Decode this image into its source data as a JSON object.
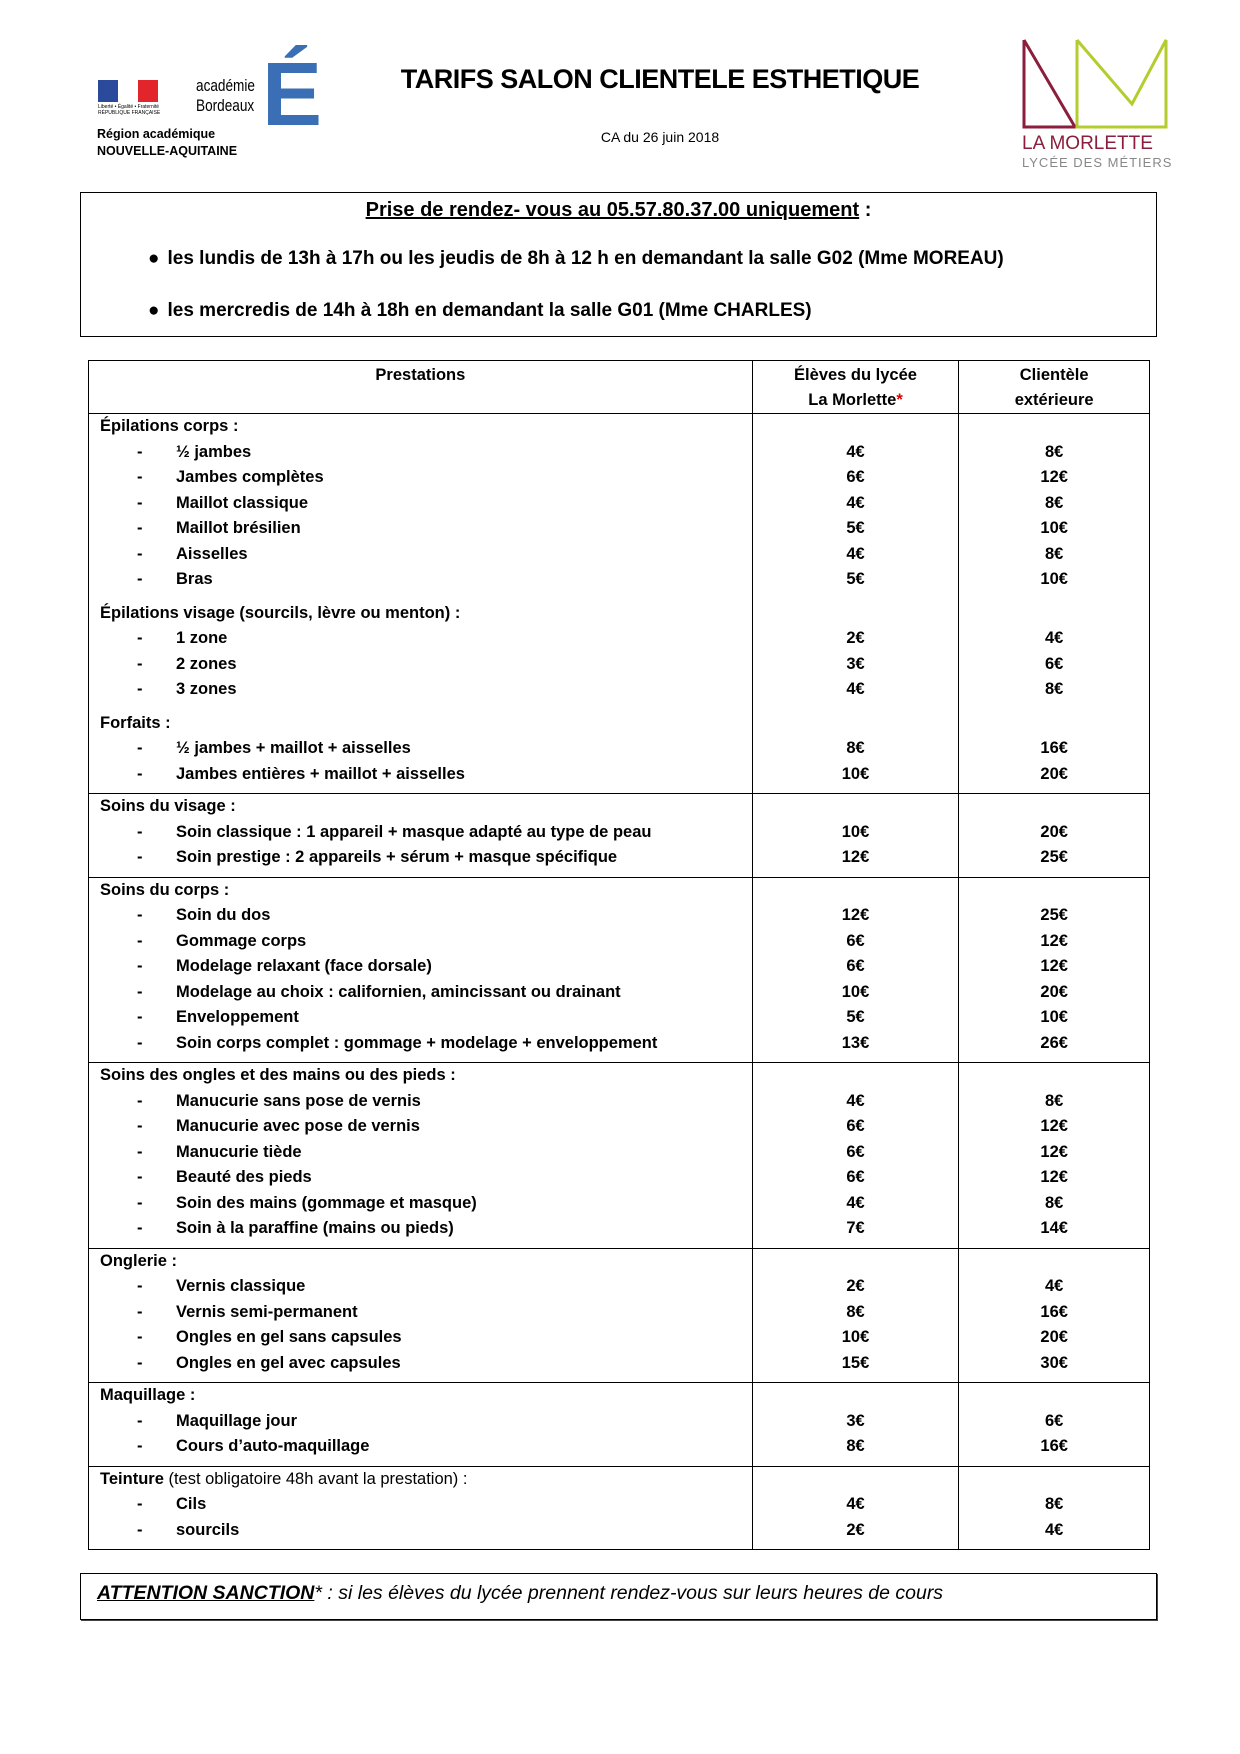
{
  "header": {
    "title": "TARIFS SALON CLIENTELE ESTHETIQUE",
    "date": "CA du 26 juin 2018",
    "left_logo": {
      "motto": "Liberté • Égalité • Fraternité",
      "republic": "RÉPUBLIQUE FRANÇAISE",
      "academie": "académie",
      "city": "Bordeaux",
      "letter": "É",
      "region_line1": "Région académique",
      "region_line2": "NOUVELLE-AQUITAINE"
    },
    "right_logo": {
      "name": "LA MORLETTE",
      "subtitle": "LYCÉE DES MÉTIERS",
      "colors": {
        "dark": "#8a1e3c",
        "light": "#b5cc2e"
      }
    }
  },
  "rdv": {
    "title": "Prise de rendez- vous au 05.57.80.37.00 uniquement",
    "title_suffix": " :",
    "bullets": [
      "les lundis de 13h à 17h ou les jeudis de 8h à 12 h en demandant la salle G02 (Mme MOREAU)",
      "les mercredis de 14h à 18h en demandant la salle G01 (Mme CHARLES)"
    ]
  },
  "table": {
    "headers": {
      "prestations": "Prestations",
      "eleves_1": "Élèves du lycée",
      "eleves_2": "La Morlette",
      "asterisk": "*",
      "ext_1": "Clientèle",
      "ext_2": "extérieure"
    },
    "sections": [
      {
        "groups": [
          {
            "heading": "Épilations corps :",
            "items": [
              [
                "½ jambes",
                "4€",
                "8€"
              ],
              [
                "Jambes complètes",
                "6€",
                "12€"
              ],
              [
                "Maillot classique",
                "4€",
                "8€"
              ],
              [
                "Maillot brésilien",
                "5€",
                "10€"
              ],
              [
                "Aisselles",
                "4€",
                "8€"
              ],
              [
                "Bras",
                "5€",
                "10€"
              ]
            ]
          },
          {
            "heading": "Épilations visage (sourcils, lèvre ou menton) :",
            "items": [
              [
                "1 zone",
                "2€",
                "4€"
              ],
              [
                "2 zones",
                "3€",
                "6€"
              ],
              [
                "3 zones",
                "4€",
                "8€"
              ]
            ]
          },
          {
            "heading": "Forfaits :",
            "items": [
              [
                "½ jambes + maillot + aisselles",
                "8€",
                "16€"
              ],
              [
                "Jambes entières + maillot + aisselles",
                "10€",
                "20€"
              ]
            ]
          }
        ]
      },
      {
        "groups": [
          {
            "heading": "Soins du visage :",
            "items": [
              [
                "Soin classique : 1 appareil + masque adapté au type de peau",
                "10€",
                "20€"
              ],
              [
                "Soin prestige : 2 appareils + sérum + masque spécifique",
                "12€",
                "25€"
              ]
            ]
          }
        ]
      },
      {
        "groups": [
          {
            "heading": "Soins du corps :",
            "items": [
              [
                "Soin du dos",
                "12€",
                "25€"
              ],
              [
                "Gommage corps",
                "6€",
                "12€"
              ],
              [
                "Modelage relaxant (face dorsale)",
                "6€",
                "12€"
              ],
              [
                "Modelage au choix : californien, amincissant ou drainant",
                "10€",
                "20€"
              ],
              [
                "Enveloppement",
                "5€",
                "10€"
              ],
              [
                "Soin corps complet : gommage + modelage + enveloppement",
                "13€",
                "26€"
              ]
            ]
          }
        ]
      },
      {
        "groups": [
          {
            "heading": "Soins des ongles et des mains ou des pieds :",
            "items": [
              [
                "Manucurie sans pose de vernis",
                "4€",
                "8€"
              ],
              [
                "Manucurie avec pose de vernis",
                "6€",
                "12€"
              ],
              [
                "Manucurie tiède",
                "6€",
                "12€"
              ],
              [
                "Beauté des pieds",
                "6€",
                "12€"
              ],
              [
                "Soin des mains (gommage et masque)",
                "4€",
                "8€"
              ],
              [
                "Soin à la paraffine (mains ou pieds)",
                "7€",
                "14€"
              ]
            ]
          }
        ]
      },
      {
        "groups": [
          {
            "heading": "Onglerie :",
            "items": [
              [
                "Vernis classique",
                "2€",
                "4€"
              ],
              [
                "Vernis semi-permanent",
                "8€",
                "16€"
              ],
              [
                "Ongles en gel sans capsules",
                "10€",
                "20€"
              ],
              [
                "Ongles en gel avec capsules",
                "15€",
                "30€"
              ]
            ]
          }
        ]
      },
      {
        "groups": [
          {
            "heading": "Maquillage :",
            "items": [
              [
                "Maquillage jour",
                "3€",
                "6€"
              ],
              [
                "Cours d’auto-maquillage",
                "8€",
                "16€"
              ]
            ]
          }
        ]
      },
      {
        "groups": [
          {
            "heading": "Teinture",
            "note": " (test obligatoire 48h avant la prestation) :",
            "items": [
              [
                "Cils",
                "4€",
                "8€"
              ],
              [
                "sourcils",
                "2€",
                "4€"
              ]
            ]
          }
        ]
      }
    ]
  },
  "attention": {
    "label": "ATTENTION SANCTION",
    "asterisk": "*",
    "text": " : si les élèves du lycée prennent rendez-vous sur leurs heures de cours"
  }
}
